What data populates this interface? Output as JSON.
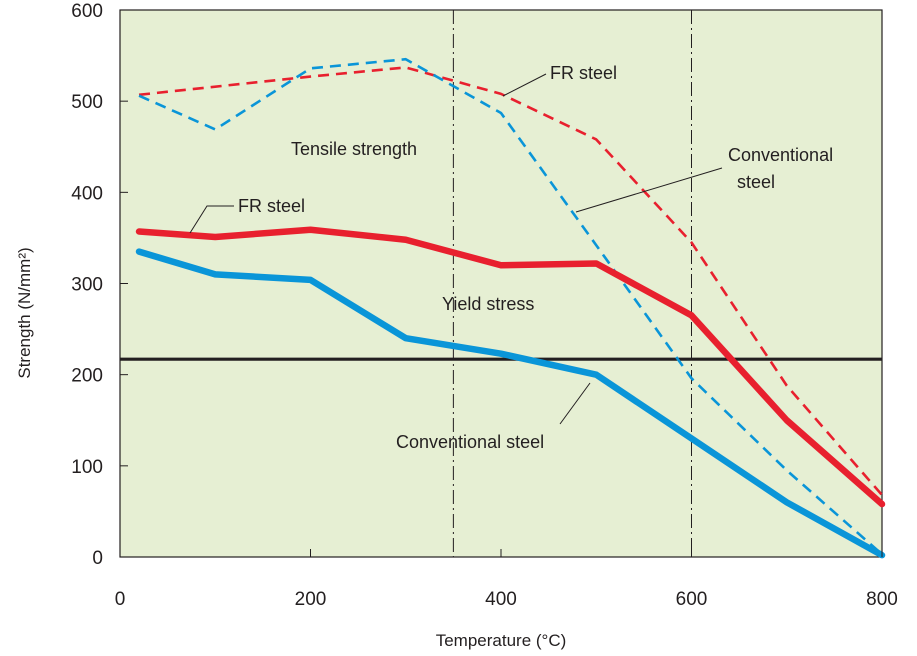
{
  "chart_data": {
    "type": "line",
    "xlabel": "Temperature (°C)",
    "ylabel": "Strength (N/mm²)",
    "xlim": [
      0,
      800
    ],
    "ylim": [
      0,
      600
    ],
    "x_ticks": [
      0,
      200,
      400,
      600,
      800
    ],
    "y_ticks": [
      0,
      100,
      200,
      300,
      400,
      500,
      600
    ],
    "x_tick_labels": [
      "0",
      "200",
      "400",
      "600",
      "800"
    ],
    "y_tick_labels": [
      "0",
      "100",
      "200",
      "300",
      "400",
      "500",
      "600"
    ],
    "background": "#e6efd3",
    "grid": false,
    "reference_lines": {
      "horizontal": [
        {
          "y": 217,
          "color": "#231f20"
        }
      ],
      "vertical": [
        {
          "x": 350,
          "style": "dash-dot"
        },
        {
          "x": 600,
          "style": "dash-dot"
        }
      ]
    },
    "series": [
      {
        "name": "FR steel",
        "group": "Tensile strength",
        "style": "dashed",
        "color": "#e8202e",
        "x": [
          20,
          200,
          300,
          400,
          500,
          600,
          700,
          800
        ],
        "y": [
          507,
          527,
          537,
          508,
          458,
          345,
          188,
          68
        ]
      },
      {
        "name": "Conventional steel",
        "group": "Tensile strength",
        "style": "dashed",
        "color": "#0a95d8",
        "x": [
          20,
          100,
          200,
          300,
          400,
          500,
          600,
          700,
          800
        ],
        "y": [
          506,
          469,
          536,
          546,
          487,
          342,
          196,
          95,
          3
        ]
      },
      {
        "name": "FR steel",
        "group": "Yield stress",
        "style": "solid",
        "color": "#e8202e",
        "x": [
          20,
          100,
          200,
          300,
          400,
          500,
          600,
          700,
          800
        ],
        "y": [
          357,
          351,
          359,
          348,
          320,
          322,
          265,
          150,
          58
        ]
      },
      {
        "name": "Conventional steel",
        "group": "Yield stress",
        "style": "solid",
        "color": "#0a95d8",
        "x": [
          20,
          100,
          200,
          300,
          400,
          500,
          600,
          700,
          800
        ],
        "y": [
          335,
          310,
          304,
          240,
          223,
          200,
          130,
          60,
          2
        ]
      }
    ],
    "annotations": [
      {
        "text": "FR steel",
        "target_series": 0
      },
      {
        "text": "Tensile strength"
      },
      {
        "text": "Conventional",
        "text2": "steel",
        "target_series": 1
      },
      {
        "text": "FR steel",
        "target_series": 2
      },
      {
        "text": "Yield stress"
      },
      {
        "text": "Conventional steel",
        "target_series": 3
      }
    ]
  }
}
